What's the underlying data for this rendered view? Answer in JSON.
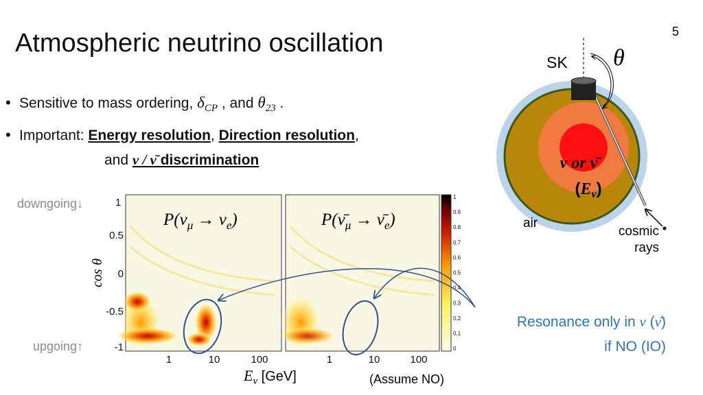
{
  "page_number": "5",
  "title": "Atmospheric neutrino oscillation",
  "bullet_1": {
    "text": "Sensitive to mass ordering, ",
    "delta": "δ",
    "delta_sub": "CP",
    "middle": " , and ",
    "theta": "θ",
    "theta_sub": "23",
    "end": " ."
  },
  "bullet_2": {
    "label": "Important: ",
    "energy": "Energy resolution",
    "sep": ", ",
    "direction": "Direction resolution",
    "comma": ",",
    "and": "and ",
    "nu": "ν / ν̄",
    "discrimination": " discrimination"
  },
  "plots": {
    "y_label_top": "downgoing↓",
    "y_label_bottom": "upgoing↑",
    "y_axis": {
      "cos": "cos",
      "theta": "θ"
    },
    "y_ticks": [
      "1",
      "0.5",
      "0",
      "-0.5",
      "-1"
    ],
    "x_label": {
      "E": "E",
      "sub": "ν",
      "unit": " [GeV]"
    },
    "note": "(Assume NO)",
    "panels": [
      {
        "label_parts": [
          "P(ν",
          "μ",
          " → ν",
          "e",
          ")"
        ],
        "x_ticks": [
          "1",
          "10",
          "100"
        ]
      },
      {
        "label_parts": [
          "P(ν̄",
          "μ",
          " → ν̄",
          "e",
          ")"
        ],
        "x_ticks": [
          "1",
          "10",
          "100"
        ]
      }
    ],
    "colorbar_ticks": [
      "0",
      "0.1",
      "0.2",
      "0.3",
      "0.4",
      "0.5",
      "0.6",
      "0.7",
      "0.8",
      "0.9",
      "1"
    ]
  },
  "diagram": {
    "sk": "SK",
    "theta": "θ",
    "nu": "ν or ν̄",
    "energy": [
      "(",
      "E",
      "ν",
      ")"
    ],
    "air": "air",
    "cosmic": "cosmic",
    "rays": "rays"
  },
  "annotation": {
    "line_1": [
      "Resonance only in ",
      "ν",
      " (",
      "ν̄",
      ")"
    ],
    "line_2": "if NO (IO)"
  }
}
